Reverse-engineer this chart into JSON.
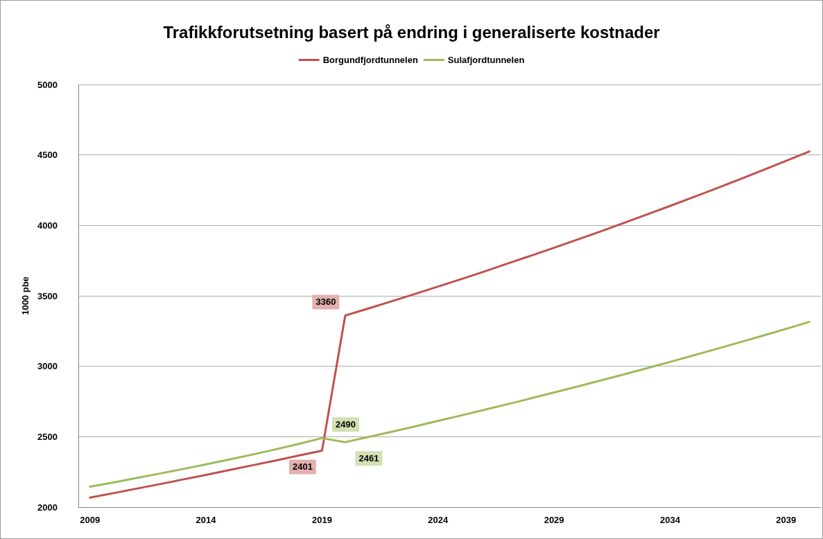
{
  "chart_data": {
    "type": "line",
    "title": "Trafikkforutsetning basert på endring i generaliserte kostnader",
    "ylabel": "1000 pbe",
    "categories": [
      "2009",
      null,
      null,
      null,
      null,
      "2014",
      null,
      null,
      null,
      null,
      "2019",
      null,
      null,
      null,
      null,
      "2024",
      null,
      null,
      null,
      null,
      "2029",
      null,
      null,
      null,
      null,
      "2034",
      null,
      null,
      null,
      null,
      "2039",
      null
    ],
    "series": [
      {
        "name": "Borgundfjordtunnelen",
        "color": "#c0504d",
        "values": [
          2068,
          2099,
          2131,
          2163,
          2196,
          2229,
          2263,
          2297,
          2331,
          2366,
          2401,
          3360,
          3410,
          3461,
          3513,
          3566,
          3619,
          3673,
          3729,
          3785,
          3841,
          3899,
          3957,
          4017,
          4077,
          4138,
          4200,
          4263,
          4327,
          4392,
          4458,
          4525
        ],
        "value_labels": [
          null,
          null,
          null,
          null,
          null,
          null,
          null,
          null,
          null,
          null,
          "2401",
          "3360",
          null,
          null,
          null,
          null,
          null,
          null,
          null,
          null,
          null,
          null,
          null,
          null,
          null,
          null,
          null,
          null,
          null,
          null,
          null,
          null
        ]
      },
      {
        "name": "Sulafjordtunnelen",
        "color": "#9bbb59",
        "values": [
          2145,
          2175,
          2207,
          2238,
          2270,
          2304,
          2338,
          2373,
          2410,
          2449,
          2490,
          2461,
          2498,
          2535,
          2573,
          2612,
          2651,
          2691,
          2731,
          2772,
          2814,
          2856,
          2899,
          2942,
          2986,
          3031,
          3077,
          3123,
          3170,
          3217,
          3266,
          3315
        ],
        "value_labels": [
          null,
          null,
          null,
          null,
          null,
          null,
          null,
          null,
          null,
          null,
          "2490",
          "2461",
          null,
          null,
          null,
          null,
          null,
          null,
          null,
          null,
          null,
          null,
          null,
          null,
          null,
          null,
          null,
          null,
          null,
          null,
          null,
          null
        ]
      }
    ],
    "ylim": [
      2000,
      5000
    ],
    "yticks": [
      2000,
      2500,
      3000,
      3500,
      4000,
      4500,
      5000
    ],
    "grid": "y",
    "legend": "top",
    "marker": "none",
    "line_style": "solid"
  }
}
